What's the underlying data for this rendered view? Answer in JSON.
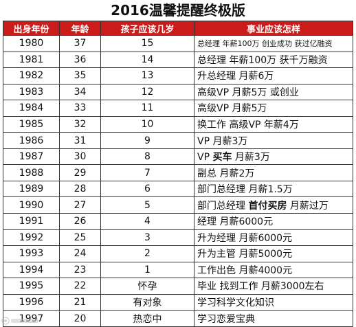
{
  "title": "2016温馨提醒终极版",
  "headers": [
    "出身年份",
    "年龄",
    "孩子应该几岁",
    "事业应该怎样"
  ],
  "rows": [
    {
      "year": "1980",
      "age": "37",
      "child": "15",
      "career_parts": [
        "总经理 年薪100万 创业成功 获过亿融资"
      ],
      "small": true
    },
    {
      "year": "1981",
      "age": "36",
      "child": "14",
      "career_parts": [
        "总经理 年薪100万 获千万融资"
      ]
    },
    {
      "year": "1982",
      "age": "35",
      "child": "13",
      "career_parts": [
        "升总经理 月薪6万"
      ]
    },
    {
      "year": "1983",
      "age": "34",
      "child": "12",
      "career_parts": [
        "高级VP 月薪5万 或创业"
      ]
    },
    {
      "year": "1984",
      "age": "33",
      "child": "11",
      "career_parts": [
        "高级VP 月薪5万"
      ]
    },
    {
      "year": "1985",
      "age": "32",
      "child": "10",
      "career_parts": [
        "换工作 高级VP 年薪4万"
      ]
    },
    {
      "year": "1986",
      "age": "31",
      "child": "9",
      "career_parts": [
        "VP 月薪3万"
      ]
    },
    {
      "year": "1987",
      "age": "30",
      "child": "8",
      "career_parts": [
        "VP ",
        "买车",
        " 月薪3万"
      ],
      "bold_index": 1
    },
    {
      "year": "1988",
      "age": "29",
      "child": "7",
      "career_parts": [
        "副总 月薪2万"
      ]
    },
    {
      "year": "1989",
      "age": "28",
      "child": "6",
      "career_parts": [
        "部门总经理 月薪1.5万"
      ]
    },
    {
      "year": "1990",
      "age": "27",
      "child": "5",
      "career_parts": [
        "部门总经理 ",
        "首付买房",
        " 月薪过万"
      ],
      "bold_index": 1
    },
    {
      "year": "1991",
      "age": "26",
      "child": "4",
      "career_parts": [
        "经理 月薪6000元"
      ]
    },
    {
      "year": "1992",
      "age": "25",
      "child": "3",
      "career_parts": [
        "升为经理 月薪6000元"
      ]
    },
    {
      "year": "1993",
      "age": "24",
      "child": "2",
      "career_parts": [
        "升为主管 月薪5000元"
      ]
    },
    {
      "year": "1994",
      "age": "23",
      "child": "1",
      "career_parts": [
        "工作出色 月薪4000元"
      ]
    },
    {
      "year": "1995",
      "age": "22",
      "child": "怀孕",
      "career_parts": [
        "毕业 找到工作 月薪3000左右"
      ]
    },
    {
      "year": "1996",
      "age": "21",
      "child": "有对象",
      "career_parts": [
        "学习科学文化知识"
      ]
    },
    {
      "year": "1997",
      "age": "20",
      "child": "热恋中",
      "career_parts": [
        "学习恋爱宝典"
      ]
    }
  ],
  "colors": {
    "header_bg": "#cc1b1b",
    "header_text": "#ffffff",
    "grid": "#333333"
  },
  "watermark_icon": "watermark-logo-icon"
}
